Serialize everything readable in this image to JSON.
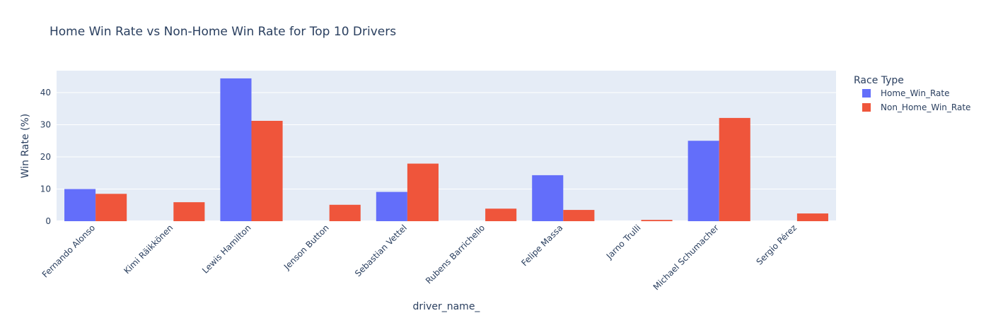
{
  "chart_data": {
    "type": "bar",
    "title": "Home Win Rate vs Non-Home Win Rate for Top 10 Drivers",
    "xlabel": "driver_name_",
    "ylabel": "Win Rate (%)",
    "categories": [
      "Fernando Alonso",
      "Kimi Räikkönen",
      "Lewis Hamilton",
      "Jenson Button",
      "Sebastian Vettel",
      "Rubens Barrichello",
      "Felipe Massa",
      "Jarno Trulli",
      "Michael Schumacher",
      "Sergio Pérez"
    ],
    "series": [
      {
        "name": "Home_Win_Rate",
        "color": "#636efa",
        "values": [
          10.0,
          0,
          44.4,
          0,
          9.1,
          0,
          14.3,
          0,
          25.0,
          0
        ]
      },
      {
        "name": "Non_Home_Win_Rate",
        "color": "#ef553b",
        "values": [
          8.5,
          5.9,
          31.2,
          5.1,
          17.9,
          3.9,
          3.5,
          0.4,
          32.1,
          2.4
        ]
      }
    ],
    "ylim": [
      0,
      46.8
    ],
    "yticks": [
      0,
      10,
      20,
      30,
      40
    ],
    "legend": {
      "title": "Race Type",
      "position": "right"
    },
    "grid": true,
    "background_color": "#e5ecf6"
  }
}
